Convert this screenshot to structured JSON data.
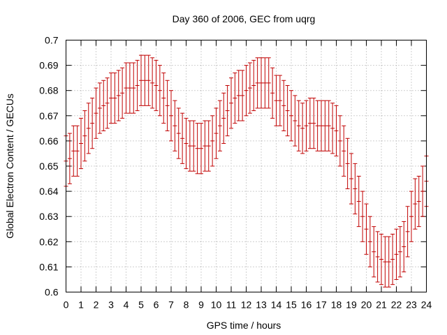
{
  "chart_data": {
    "type": "errorbar",
    "title": "Day 360 of 2006, GEC from uqrg",
    "xlabel": "GPS time / hours",
    "ylabel": "Global Electron Content / GECUs",
    "xlim": [
      0,
      24
    ],
    "ylim": [
      0.6,
      0.7
    ],
    "xticks": [
      0,
      1,
      2,
      3,
      4,
      5,
      6,
      7,
      8,
      9,
      10,
      11,
      12,
      13,
      14,
      15,
      16,
      17,
      18,
      19,
      20,
      21,
      22,
      23,
      24
    ],
    "ytick_labels": [
      "0.6",
      "0.61",
      "0.62",
      "0.63",
      "0.64",
      "0.65",
      "0.66",
      "0.67",
      "0.68",
      "0.69",
      "0.7"
    ],
    "grid": true,
    "series": [
      {
        "name": "GEC",
        "color": "#c00000",
        "x": [
          0.0,
          0.25,
          0.5,
          0.75,
          1.0,
          1.25,
          1.5,
          1.75,
          2.0,
          2.25,
          2.5,
          2.75,
          3.0,
          3.25,
          3.5,
          3.75,
          4.0,
          4.25,
          4.5,
          4.75,
          5.0,
          5.25,
          5.5,
          5.75,
          6.0,
          6.25,
          6.5,
          6.75,
          7.0,
          7.25,
          7.5,
          7.75,
          8.0,
          8.25,
          8.5,
          8.75,
          9.0,
          9.25,
          9.5,
          9.75,
          10.0,
          10.25,
          10.5,
          10.75,
          11.0,
          11.25,
          11.5,
          11.75,
          12.0,
          12.25,
          12.5,
          12.75,
          13.0,
          13.25,
          13.5,
          13.75,
          14.0,
          14.25,
          14.5,
          14.75,
          15.0,
          15.25,
          15.5,
          15.75,
          16.0,
          16.25,
          16.5,
          16.75,
          17.0,
          17.25,
          17.5,
          17.75,
          18.0,
          18.25,
          18.5,
          18.75,
          19.0,
          19.25,
          19.5,
          19.75,
          20.0,
          20.25,
          20.5,
          20.75,
          21.0,
          21.25,
          21.5,
          21.75,
          22.0,
          22.25,
          22.5,
          22.75,
          23.0,
          23.25,
          23.5,
          23.75,
          24.0
        ],
        "y": [
          0.652,
          0.653,
          0.656,
          0.656,
          0.659,
          0.662,
          0.665,
          0.667,
          0.671,
          0.673,
          0.674,
          0.675,
          0.677,
          0.677,
          0.678,
          0.679,
          0.681,
          0.681,
          0.681,
          0.682,
          0.684,
          0.684,
          0.684,
          0.683,
          0.682,
          0.68,
          0.677,
          0.674,
          0.67,
          0.666,
          0.663,
          0.661,
          0.659,
          0.658,
          0.658,
          0.657,
          0.657,
          0.658,
          0.658,
          0.66,
          0.663,
          0.666,
          0.669,
          0.672,
          0.675,
          0.677,
          0.678,
          0.678,
          0.68,
          0.681,
          0.682,
          0.683,
          0.683,
          0.683,
          0.683,
          0.679,
          0.676,
          0.676,
          0.674,
          0.672,
          0.67,
          0.668,
          0.666,
          0.665,
          0.666,
          0.667,
          0.667,
          0.666,
          0.666,
          0.666,
          0.666,
          0.665,
          0.664,
          0.66,
          0.656,
          0.651,
          0.645,
          0.641,
          0.636,
          0.63,
          0.625,
          0.62,
          0.616,
          0.614,
          0.613,
          0.612,
          0.612,
          0.613,
          0.615,
          0.616,
          0.618,
          0.624,
          0.63,
          0.635,
          0.636,
          0.64,
          0.644
        ],
        "err": [
          0.01,
          0.01,
          0.01,
          0.01,
          0.01,
          0.01,
          0.01,
          0.01,
          0.01,
          0.01,
          0.01,
          0.01,
          0.01,
          0.01,
          0.01,
          0.01,
          0.01,
          0.01,
          0.01,
          0.01,
          0.01,
          0.01,
          0.01,
          0.01,
          0.01,
          0.01,
          0.01,
          0.01,
          0.01,
          0.01,
          0.01,
          0.01,
          0.01,
          0.01,
          0.01,
          0.01,
          0.01,
          0.01,
          0.01,
          0.01,
          0.01,
          0.01,
          0.01,
          0.01,
          0.01,
          0.01,
          0.01,
          0.01,
          0.01,
          0.01,
          0.01,
          0.01,
          0.01,
          0.01,
          0.01,
          0.01,
          0.01,
          0.01,
          0.01,
          0.01,
          0.01,
          0.01,
          0.01,
          0.01,
          0.01,
          0.01,
          0.01,
          0.01,
          0.01,
          0.01,
          0.01,
          0.01,
          0.01,
          0.01,
          0.01,
          0.01,
          0.01,
          0.01,
          0.01,
          0.01,
          0.01,
          0.01,
          0.01,
          0.01,
          0.01,
          0.01,
          0.01,
          0.01,
          0.01,
          0.01,
          0.01,
          0.01,
          0.01,
          0.01,
          0.01,
          0.01,
          0.01
        ]
      }
    ]
  }
}
